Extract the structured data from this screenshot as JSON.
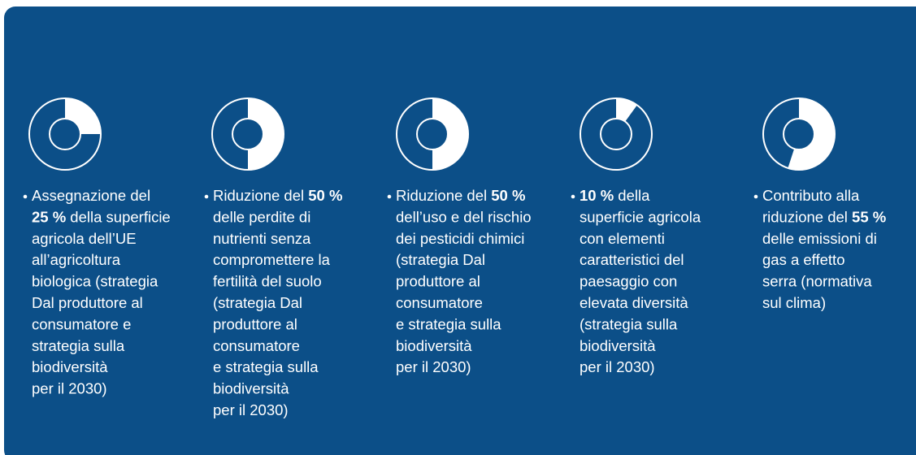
{
  "items": [
    {
      "value": 25,
      "lines": [
        [
          {
            "text": "Assegnazione del"
          }
        ],
        [
          {
            "text": "25 %",
            "bold": true
          },
          {
            "text": " della superficie"
          }
        ],
        [
          {
            "text": "agricola dell’UE"
          }
        ],
        [
          {
            "text": "all’agricoltura"
          }
        ],
        [
          {
            "text": "biologica (strategia"
          }
        ],
        [
          {
            "text": "Dal produttore al"
          }
        ],
        [
          {
            "text": "consumatore e"
          }
        ],
        [
          {
            "text": "strategia sulla"
          }
        ],
        [
          {
            "text": "biodiversità"
          }
        ],
        [
          {
            "text": "per il 2030)"
          }
        ]
      ]
    },
    {
      "value": 50,
      "lines": [
        [
          {
            "text": "Riduzione del "
          },
          {
            "text": "50 %",
            "bold": true
          }
        ],
        [
          {
            "text": "delle perdite di"
          }
        ],
        [
          {
            "text": "nutrienti senza"
          }
        ],
        [
          {
            "text": "compromettere la"
          }
        ],
        [
          {
            "text": "fertilità del suolo"
          }
        ],
        [
          {
            "text": "(strategia Dal"
          }
        ],
        [
          {
            "text": "produttore al"
          }
        ],
        [
          {
            "text": "consumatore"
          }
        ],
        [
          {
            "text": "e strategia sulla"
          }
        ],
        [
          {
            "text": "biodiversità"
          }
        ],
        [
          {
            "text": "per il 2030)"
          }
        ]
      ]
    },
    {
      "value": 50,
      "lines": [
        [
          {
            "text": "Riduzione del "
          },
          {
            "text": "50 %",
            "bold": true
          }
        ],
        [
          {
            "text": "dell’uso e del rischio"
          }
        ],
        [
          {
            "text": "dei pesticidi chimici"
          }
        ],
        [
          {
            "text": "(strategia Dal"
          }
        ],
        [
          {
            "text": "produttore al"
          }
        ],
        [
          {
            "text": "consumatore"
          }
        ],
        [
          {
            "text": "e strategia sulla"
          }
        ],
        [
          {
            "text": "biodiversità"
          }
        ],
        [
          {
            "text": "per il 2030)"
          }
        ]
      ]
    },
    {
      "value": 10,
      "lines": [
        [
          {
            "text": "10 %",
            "bold": true
          },
          {
            "text": " della"
          }
        ],
        [
          {
            "text": "superficie agricola"
          }
        ],
        [
          {
            "text": "con elementi"
          }
        ],
        [
          {
            "text": "caratteristici del"
          }
        ],
        [
          {
            "text": "paesaggio con"
          }
        ],
        [
          {
            "text": "elevata diversità"
          }
        ],
        [
          {
            "text": "(strategia sulla"
          }
        ],
        [
          {
            "text": "biodiversità"
          }
        ],
        [
          {
            "text": "per il 2030)"
          }
        ]
      ]
    },
    {
      "value": 55,
      "lines": [
        [
          {
            "text": "Contributo alla"
          }
        ],
        [
          {
            "text": "riduzione del "
          },
          {
            "text": "55 %",
            "bold": true
          }
        ],
        [
          {
            "text": "delle emissioni di"
          }
        ],
        [
          {
            "text": "gas a effetto"
          }
        ],
        [
          {
            "text": "serra (normativa"
          }
        ],
        [
          {
            "text": "sul clima)"
          }
        ]
      ]
    }
  ]
}
